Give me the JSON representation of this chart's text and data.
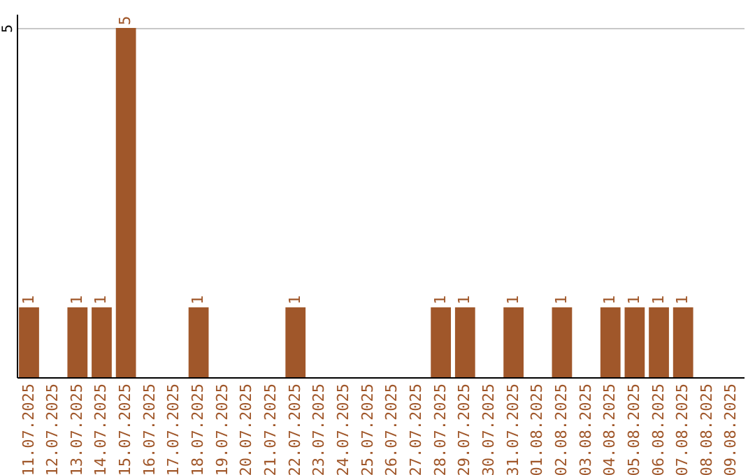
{
  "chart_data": {
    "type": "bar",
    "categories": [
      "11.07.2025",
      "12.07.2025",
      "13.07.2025",
      "14.07.2025",
      "15.07.2025",
      "16.07.2025",
      "17.07.2025",
      "18.07.2025",
      "19.07.2025",
      "20.07.2025",
      "21.07.2025",
      "22.07.2025",
      "23.07.2025",
      "24.07.2025",
      "25.07.2025",
      "26.07.2025",
      "27.07.2025",
      "28.07.2025",
      "29.07.2025",
      "30.07.2025",
      "31.07.2025",
      "01.08.2025",
      "02.08.2025",
      "03.08.2025",
      "04.08.2025",
      "05.08.2025",
      "06.08.2025",
      "07.08.2025",
      "08.08.2025",
      "09.08.2025"
    ],
    "values": [
      1,
      0,
      1,
      1,
      5,
      0,
      0,
      1,
      0,
      0,
      0,
      1,
      0,
      0,
      0,
      0,
      0,
      1,
      1,
      0,
      1,
      0,
      1,
      0,
      1,
      1,
      1,
      1,
      0,
      0
    ],
    "value_labels": [
      "1",
      null,
      "1",
      "1",
      "5",
      null,
      null,
      "1",
      null,
      null,
      null,
      "1",
      null,
      null,
      null,
      null,
      null,
      "1",
      "1",
      null,
      "1",
      null,
      "1",
      null,
      "1",
      "1",
      "1",
      "1",
      null,
      null
    ],
    "color": "#a0572a",
    "ylim": [
      0,
      5.2
    ],
    "yticks": [
      5
    ],
    "grid": "y"
  }
}
